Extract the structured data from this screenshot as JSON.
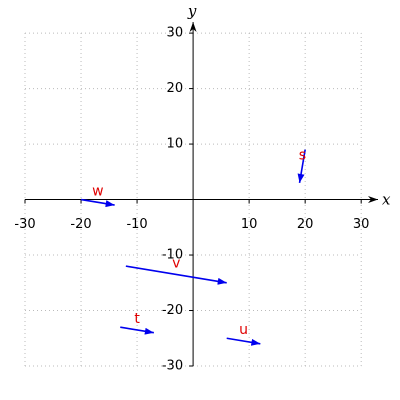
{
  "chart_data": {
    "type": "vector",
    "xlim": [
      -30,
      33
    ],
    "ylim": [
      -30,
      32
    ],
    "xticks": [
      -30,
      -20,
      -10,
      10,
      20,
      30
    ],
    "yticks": [
      -30,
      -20,
      -10,
      10,
      20,
      30
    ],
    "xlabel": "x",
    "ylabel": "y",
    "grid": true,
    "color": "#0000ee",
    "label_color": "#e00000",
    "vectors": [
      {
        "name": "s",
        "x": 20,
        "y": 9,
        "dx": -1,
        "dy": -6
      },
      {
        "name": "w",
        "x": -20,
        "y": 0,
        "dx": 6,
        "dy": -1
      },
      {
        "name": "v",
        "x": -12,
        "y": -12,
        "dx": 18,
        "dy": -3
      },
      {
        "name": "t",
        "x": -13,
        "y": -23,
        "dx": 6,
        "dy": -1
      },
      {
        "name": "u",
        "x": 6,
        "y": -25,
        "dx": 6,
        "dy": -1
      }
    ]
  }
}
